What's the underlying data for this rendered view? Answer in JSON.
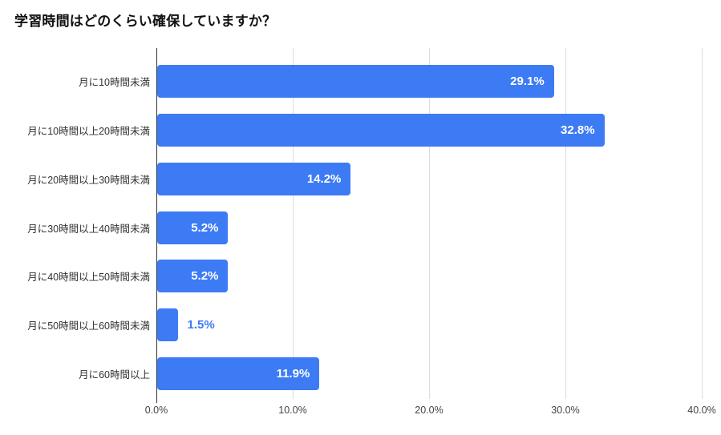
{
  "title": "学習時間はどのくらい確保していますか？",
  "chart_data": {
    "type": "bar",
    "orientation": "horizontal",
    "title": "学習時間はどのくらい確保していますか？",
    "categories": [
      "月に10時間未満",
      "月に10時間以上20時間未満",
      "月に20時間以上30時間未満",
      "月に30時間以上40時間未満",
      "月に40時間以上50時間未満",
      "月に50時間以上60時間未満",
      "月に60時間以上"
    ],
    "values": [
      29.1,
      32.8,
      14.2,
      5.2,
      5.2,
      1.5,
      11.9
    ],
    "value_labels": [
      "29.1%",
      "32.8%",
      "14.2%",
      "5.2%",
      "5.2%",
      "1.5%",
      "11.9%"
    ],
    "x_ticks": [
      "0.0%",
      "10.0%",
      "20.0%",
      "30.0%",
      "40.0%"
    ],
    "x_tick_values": [
      0,
      10,
      20,
      30,
      40
    ],
    "xlim": [
      0,
      40
    ],
    "xlabel": "",
    "ylabel": "",
    "grid": true,
    "legend": "none",
    "colors": {
      "bar": "#3D7BF5",
      "value_label_inside": "#FFFFFF",
      "value_label_outside": "#3D7BF5",
      "gridline": "#DADCE0",
      "axis_line": "#333333",
      "text": "#333333"
    }
  }
}
